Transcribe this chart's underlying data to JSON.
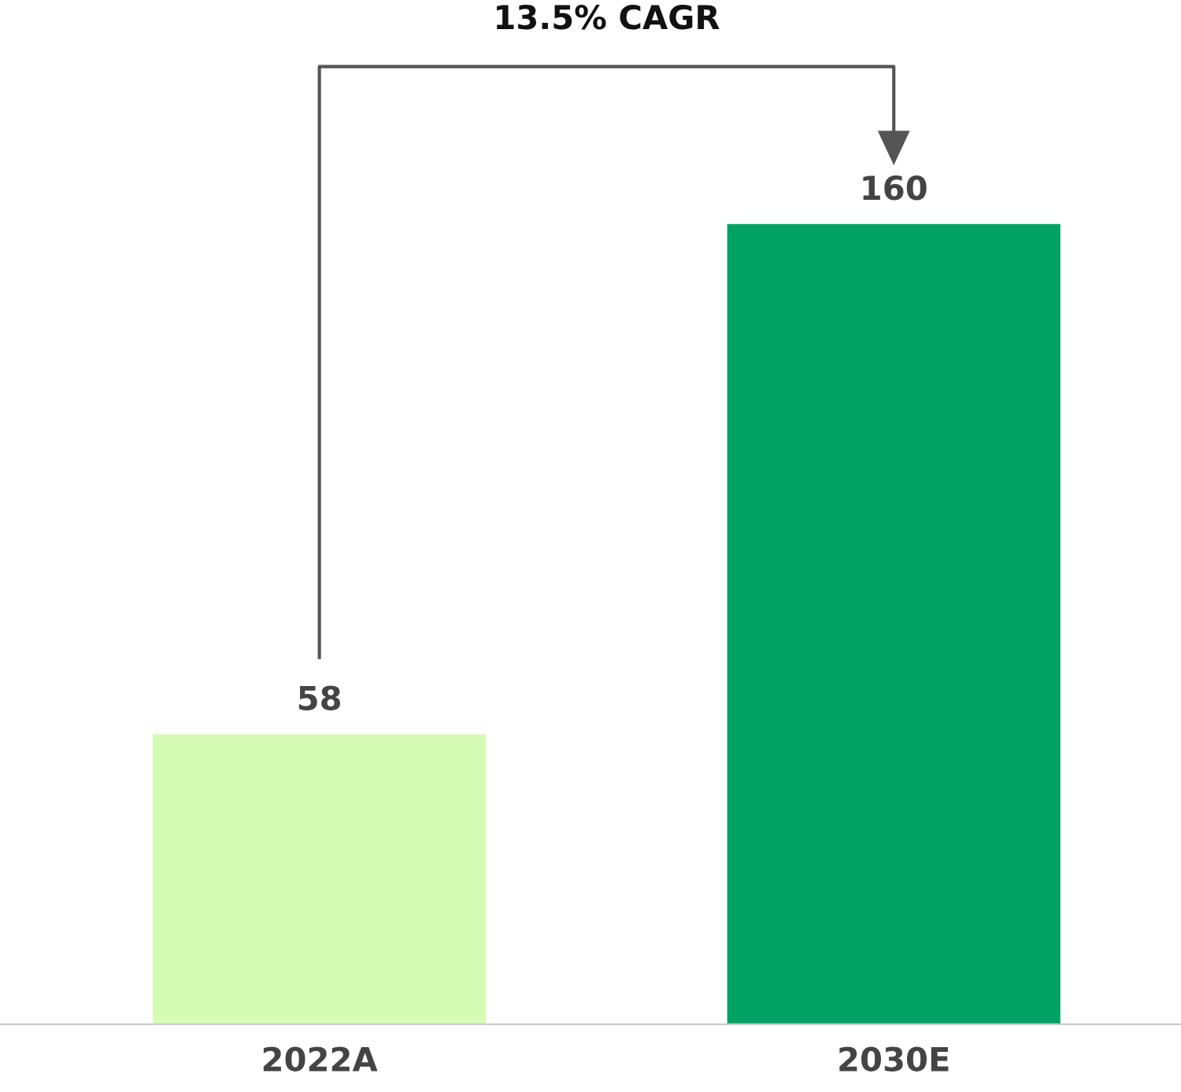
{
  "chart_data": {
    "type": "bar",
    "categories": [
      "2022A",
      "2030E"
    ],
    "values": [
      58,
      160
    ],
    "colors": [
      "#d4fcb4",
      "#00a264"
    ],
    "data_labels": true,
    "annotations": [
      "13.5% CAGR"
    ],
    "grid": false,
    "legend": false
  }
}
